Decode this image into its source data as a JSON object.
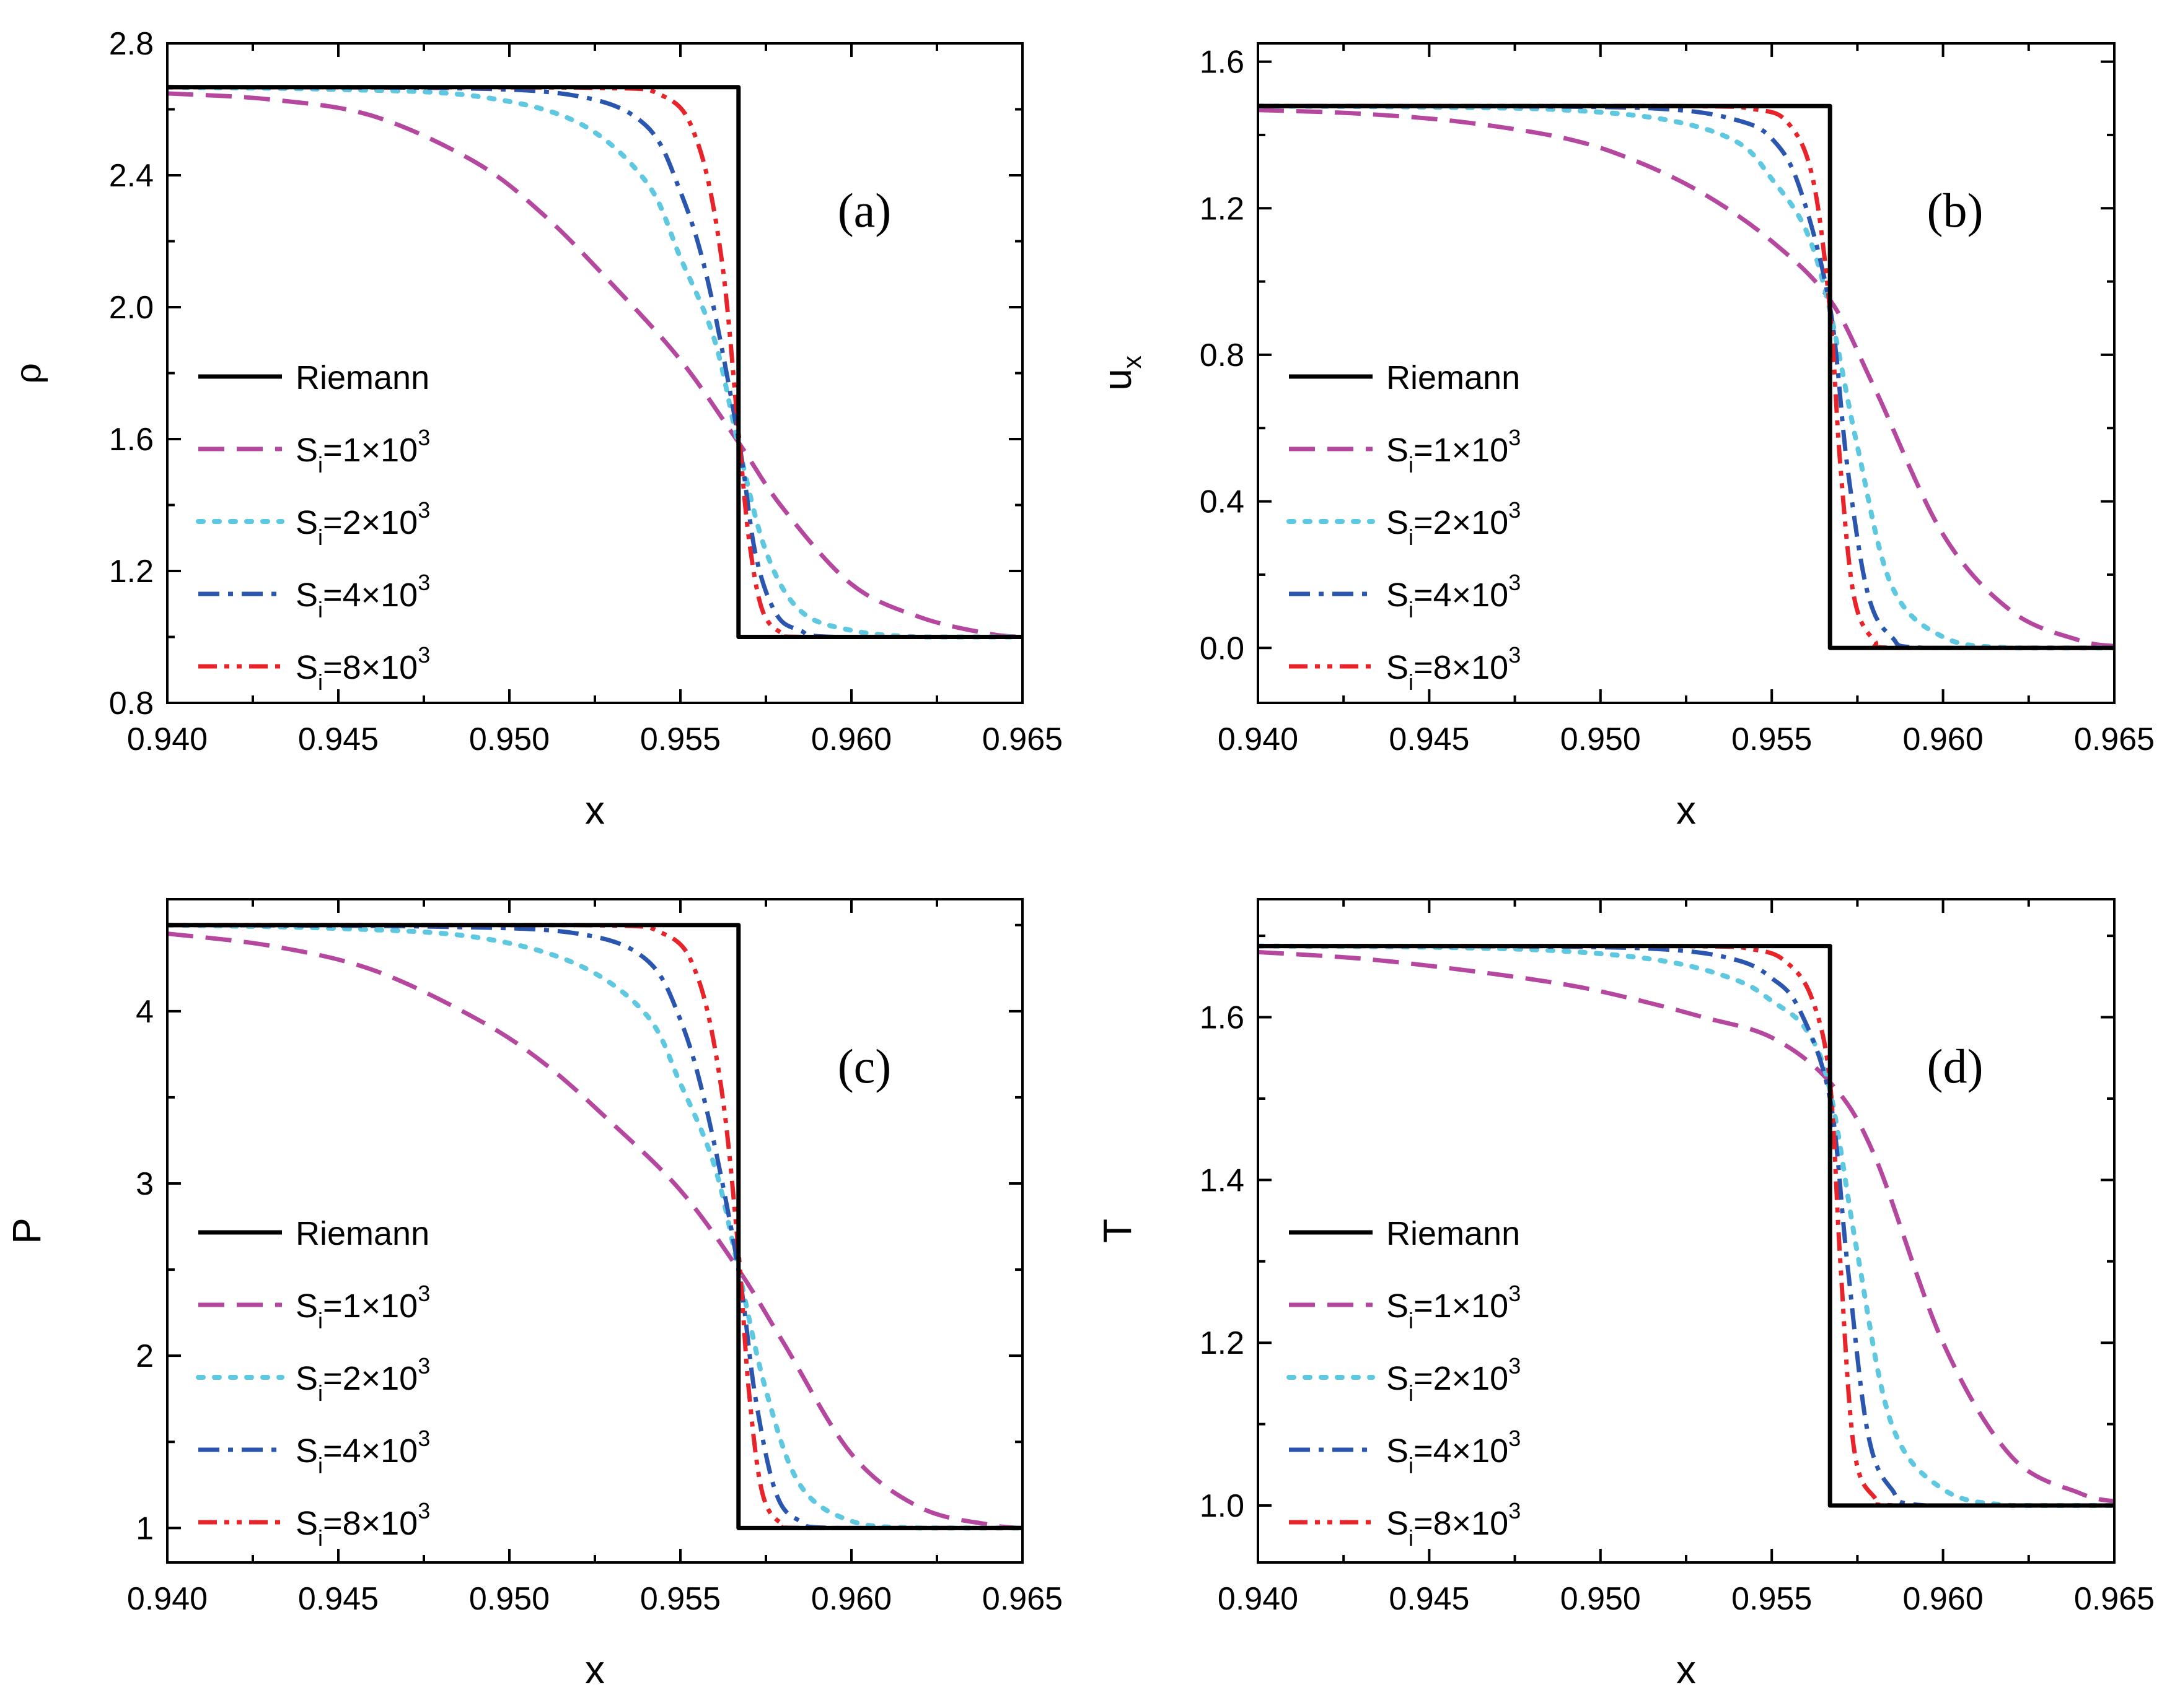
{
  "chart_data": [
    {
      "type": "line",
      "panel_label": "(a)",
      "xlabel": "x",
      "ylabel": "ρ",
      "xlim": [
        0.94,
        0.965
      ],
      "ylim": [
        0.8,
        2.8
      ],
      "xticks": [
        0.94,
        0.945,
        0.95,
        0.955,
        0.96,
        0.965
      ],
      "xtick_labels": [
        "0.940",
        "0.945",
        "0.950",
        "0.955",
        "0.960",
        "0.965"
      ],
      "yticks": [
        0.8,
        1.2,
        1.6,
        2.0,
        2.4,
        2.8
      ],
      "ytick_labels": [
        "0.8",
        "1.2",
        "1.6",
        "2.0",
        "2.4",
        "2.8"
      ],
      "left_state": 2.667,
      "right_state": 1.0,
      "shock_x": 0.9567,
      "series": [
        {
          "name": "Riemann",
          "style": "solid",
          "color": "#000000",
          "x": [
            0.94,
            0.9567,
            0.9567,
            0.965
          ],
          "y": [
            2.667,
            2.667,
            1.0,
            1.0
          ]
        },
        {
          "name": "S=1×10^3",
          "style": "dash",
          "color": "#b5479f",
          "x": [
            0.94,
            0.943,
            0.946,
            0.949,
            0.951,
            0.953,
            0.955,
            0.9567,
            0.958,
            0.96,
            0.962,
            0.964,
            0.965
          ],
          "y": [
            2.648,
            2.63,
            2.58,
            2.44,
            2.28,
            2.07,
            1.84,
            1.59,
            1.39,
            1.16,
            1.06,
            1.01,
            1.0
          ]
        },
        {
          "name": "S=2×10^3",
          "style": "dot",
          "color": "#5ec8e0",
          "x": [
            0.94,
            0.945,
            0.949,
            0.952,
            0.954,
            0.955,
            0.956,
            0.9567,
            0.9575,
            0.9585,
            0.96,
            0.962,
            0.965
          ],
          "y": [
            2.667,
            2.66,
            2.64,
            2.56,
            2.38,
            2.15,
            1.9,
            1.58,
            1.26,
            1.08,
            1.02,
            1.0,
            1.0
          ]
        },
        {
          "name": "S=4×10^3",
          "style": "dashdot",
          "color": "#2a56b0",
          "x": [
            0.94,
            0.948,
            0.952,
            0.954,
            0.955,
            0.9558,
            0.9567,
            0.9572,
            0.9578,
            0.9585,
            0.9595,
            0.965
          ],
          "y": [
            2.667,
            2.665,
            2.64,
            2.55,
            2.35,
            2.08,
            1.6,
            1.25,
            1.07,
            1.02,
            1.0,
            1.0
          ]
        },
        {
          "name": "S=8×10^3",
          "style": "dashdotdot",
          "color": "#e8232a",
          "x": [
            0.94,
            0.952,
            0.9545,
            0.9555,
            0.9562,
            0.9567,
            0.957,
            0.9574,
            0.958,
            0.9587,
            0.965
          ],
          "y": [
            2.667,
            2.666,
            2.64,
            2.5,
            2.15,
            1.62,
            1.3,
            1.08,
            1.01,
            1.0,
            1.0
          ]
        }
      ]
    },
    {
      "type": "line",
      "panel_label": "(b)",
      "xlabel": "x",
      "ylabel": "u",
      "ylabel_sub": "x",
      "xlim": [
        0.94,
        0.965
      ],
      "ylim": [
        -0.15,
        1.65
      ],
      "xticks": [
        0.94,
        0.945,
        0.95,
        0.955,
        0.96,
        0.965
      ],
      "xtick_labels": [
        "0.940",
        "0.945",
        "0.950",
        "0.955",
        "0.960",
        "0.965"
      ],
      "yticks": [
        0.0,
        0.4,
        0.8,
        1.2,
        1.6
      ],
      "ytick_labels": [
        "0.0",
        "0.4",
        "0.8",
        "1.2",
        "1.6"
      ],
      "left_state": 1.479,
      "right_state": 0.0,
      "shock_x": 0.9567,
      "series": [
        {
          "name": "Riemann",
          "style": "solid",
          "color": "#000000",
          "x": [
            0.94,
            0.9567,
            0.9567,
            0.965
          ],
          "y": [
            1.479,
            1.479,
            0.0,
            0.0
          ]
        },
        {
          "name": "S=1×10^3",
          "style": "dash",
          "color": "#b5479f",
          "x": [
            0.94,
            0.943,
            0.946,
            0.949,
            0.951,
            0.953,
            0.955,
            0.9567,
            0.958,
            0.96,
            0.962,
            0.964,
            0.965
          ],
          "y": [
            1.468,
            1.458,
            1.435,
            1.39,
            1.33,
            1.24,
            1.11,
            0.95,
            0.71,
            0.31,
            0.1,
            0.02,
            0.005
          ]
        },
        {
          "name": "S=2×10^3",
          "style": "dot",
          "color": "#5ec8e0",
          "x": [
            0.94,
            0.945,
            0.949,
            0.952,
            0.954,
            0.955,
            0.956,
            0.9567,
            0.9575,
            0.9585,
            0.96,
            0.962,
            0.965
          ],
          "y": [
            1.479,
            1.476,
            1.468,
            1.44,
            1.38,
            1.28,
            1.14,
            0.92,
            0.55,
            0.17,
            0.03,
            0.0,
            0.0
          ]
        },
        {
          "name": "S=4×10^3",
          "style": "dashdot",
          "color": "#2a56b0",
          "x": [
            0.94,
            0.948,
            0.952,
            0.954,
            0.955,
            0.9558,
            0.9567,
            0.9572,
            0.9578,
            0.9585,
            0.9595,
            0.965
          ],
          "y": [
            1.479,
            1.478,
            1.47,
            1.44,
            1.39,
            1.26,
            0.93,
            0.5,
            0.15,
            0.03,
            0.0,
            0.0
          ]
        },
        {
          "name": "S=8×10^3",
          "style": "dashdotdot",
          "color": "#e8232a",
          "x": [
            0.94,
            0.952,
            0.9545,
            0.9555,
            0.9562,
            0.9567,
            0.957,
            0.9574,
            0.958,
            0.9587,
            0.965
          ],
          "y": [
            1.479,
            1.479,
            1.47,
            1.43,
            1.28,
            0.92,
            0.5,
            0.14,
            0.02,
            0.0,
            0.0
          ]
        }
      ]
    },
    {
      "type": "line",
      "panel_label": "(c)",
      "xlabel": "x",
      "ylabel": "P",
      "xlim": [
        0.94,
        0.965
      ],
      "ylim": [
        0.8,
        4.65
      ],
      "xticks": [
        0.94,
        0.945,
        0.95,
        0.955,
        0.96,
        0.965
      ],
      "xtick_labels": [
        "0.940",
        "0.945",
        "0.950",
        "0.955",
        "0.960",
        "0.965"
      ],
      "yticks": [
        1,
        2,
        3,
        4
      ],
      "ytick_labels": [
        "1",
        "2",
        "3",
        "4"
      ],
      "left_state": 4.5,
      "right_state": 1.0,
      "shock_x": 0.9567,
      "series": [
        {
          "name": "Riemann",
          "style": "solid",
          "color": "#000000",
          "x": [
            0.94,
            0.9567,
            0.9567,
            0.965
          ],
          "y": [
            4.5,
            4.5,
            1.0,
            1.0
          ]
        },
        {
          "name": "S=1×10^3",
          "style": "dash",
          "color": "#b5479f",
          "x": [
            0.94,
            0.943,
            0.946,
            0.949,
            0.951,
            0.953,
            0.955,
            0.9567,
            0.958,
            0.96,
            0.962,
            0.964,
            0.965
          ],
          "y": [
            4.45,
            4.38,
            4.24,
            3.96,
            3.7,
            3.35,
            2.96,
            2.5,
            2.08,
            1.43,
            1.12,
            1.02,
            1.0
          ]
        },
        {
          "name": "S=2×10^3",
          "style": "dot",
          "color": "#5ec8e0",
          "x": [
            0.94,
            0.945,
            0.949,
            0.952,
            0.954,
            0.955,
            0.956,
            0.9567,
            0.9575,
            0.9585,
            0.96,
            0.962,
            0.965
          ],
          "y": [
            4.5,
            4.48,
            4.43,
            4.27,
            3.98,
            3.58,
            3.1,
            2.5,
            1.8,
            1.25,
            1.04,
            1.0,
            1.0
          ]
        },
        {
          "name": "S=4×10^3",
          "style": "dashdot",
          "color": "#2a56b0",
          "x": [
            0.94,
            0.948,
            0.952,
            0.954,
            0.955,
            0.9558,
            0.9567,
            0.9572,
            0.9578,
            0.9585,
            0.9595,
            0.965
          ],
          "y": [
            4.5,
            4.49,
            4.45,
            4.3,
            3.95,
            3.4,
            2.5,
            1.75,
            1.2,
            1.04,
            1.0,
            1.0
          ]
        },
        {
          "name": "S=8×10^3",
          "style": "dashdotdot",
          "color": "#e8232a",
          "x": [
            0.94,
            0.952,
            0.9545,
            0.9555,
            0.9562,
            0.9567,
            0.957,
            0.9574,
            0.958,
            0.9587,
            0.965
          ],
          "y": [
            4.5,
            4.5,
            4.45,
            4.2,
            3.55,
            2.6,
            1.8,
            1.2,
            1.02,
            1.0,
            1.0
          ]
        }
      ]
    },
    {
      "type": "line",
      "panel_label": "(d)",
      "xlabel": "x",
      "ylabel": "T",
      "xlim": [
        0.94,
        0.965
      ],
      "ylim": [
        0.93,
        1.745
      ],
      "xticks": [
        0.94,
        0.945,
        0.95,
        0.955,
        0.96,
        0.965
      ],
      "xtick_labels": [
        "0.940",
        "0.945",
        "0.950",
        "0.955",
        "0.960",
        "0.965"
      ],
      "yticks": [
        1.0,
        1.2,
        1.4,
        1.6
      ],
      "ytick_labels": [
        "1.0",
        "1.2",
        "1.4",
        "1.6"
      ],
      "left_state": 1.6875,
      "right_state": 1.0,
      "shock_x": 0.9567,
      "series": [
        {
          "name": "Riemann",
          "style": "solid",
          "color": "#000000",
          "x": [
            0.94,
            0.9567,
            0.9567,
            0.965
          ],
          "y": [
            1.6875,
            1.6875,
            1.0,
            1.0
          ]
        },
        {
          "name": "S=1×10^3",
          "style": "dash",
          "color": "#b5479f",
          "x": [
            0.94,
            0.943,
            0.946,
            0.949,
            0.951,
            0.953,
            0.955,
            0.9567,
            0.958,
            0.96,
            0.962,
            0.964,
            0.965
          ],
          "y": [
            1.68,
            1.672,
            1.658,
            1.64,
            1.622,
            1.6,
            1.575,
            1.52,
            1.43,
            1.2,
            1.06,
            1.015,
            1.005
          ]
        },
        {
          "name": "S=2×10^3",
          "style": "dot",
          "color": "#5ec8e0",
          "x": [
            0.94,
            0.945,
            0.949,
            0.952,
            0.954,
            0.955,
            0.956,
            0.9567,
            0.9575,
            0.9585,
            0.96,
            0.962,
            0.965
          ],
          "y": [
            1.6875,
            1.686,
            1.681,
            1.668,
            1.645,
            1.62,
            1.585,
            1.51,
            1.31,
            1.1,
            1.02,
            1.0,
            1.0
          ]
        },
        {
          "name": "S=4×10^3",
          "style": "dashdot",
          "color": "#2a56b0",
          "x": [
            0.94,
            0.948,
            0.952,
            0.954,
            0.955,
            0.9558,
            0.9567,
            0.9572,
            0.9578,
            0.9585,
            0.9595,
            0.965
          ],
          "y": [
            1.6875,
            1.687,
            1.683,
            1.67,
            1.648,
            1.61,
            1.5,
            1.3,
            1.09,
            1.02,
            1.0,
            1.0
          ]
        },
        {
          "name": "S=8×10^3",
          "style": "dashdotdot",
          "color": "#e8232a",
          "x": [
            0.94,
            0.952,
            0.9545,
            0.9555,
            0.9562,
            0.9567,
            0.957,
            0.9574,
            0.958,
            0.9587,
            0.965
          ],
          "y": [
            1.6875,
            1.6875,
            1.683,
            1.665,
            1.62,
            1.52,
            1.3,
            1.07,
            1.01,
            1.0,
            1.0
          ]
        }
      ]
    }
  ],
  "legend_entries": [
    {
      "label": "Riemann",
      "sub": "",
      "sup": "",
      "style": "solid",
      "color": "#000000"
    },
    {
      "label": "S",
      "sub": "i",
      "rest": "=1×10",
      "sup": "3",
      "style": "dash",
      "color": "#b5479f"
    },
    {
      "label": "S",
      "sub": "i",
      "rest": "=2×10",
      "sup": "3",
      "style": "dot",
      "color": "#5ec8e0"
    },
    {
      "label": "S",
      "sub": "i",
      "rest": "=4×10",
      "sup": "3",
      "style": "dashdot",
      "color": "#2a56b0"
    },
    {
      "label": "S",
      "sub": "i",
      "rest": "=8×10",
      "sup": "3",
      "style": "dashdotdot",
      "color": "#e8232a"
    }
  ]
}
